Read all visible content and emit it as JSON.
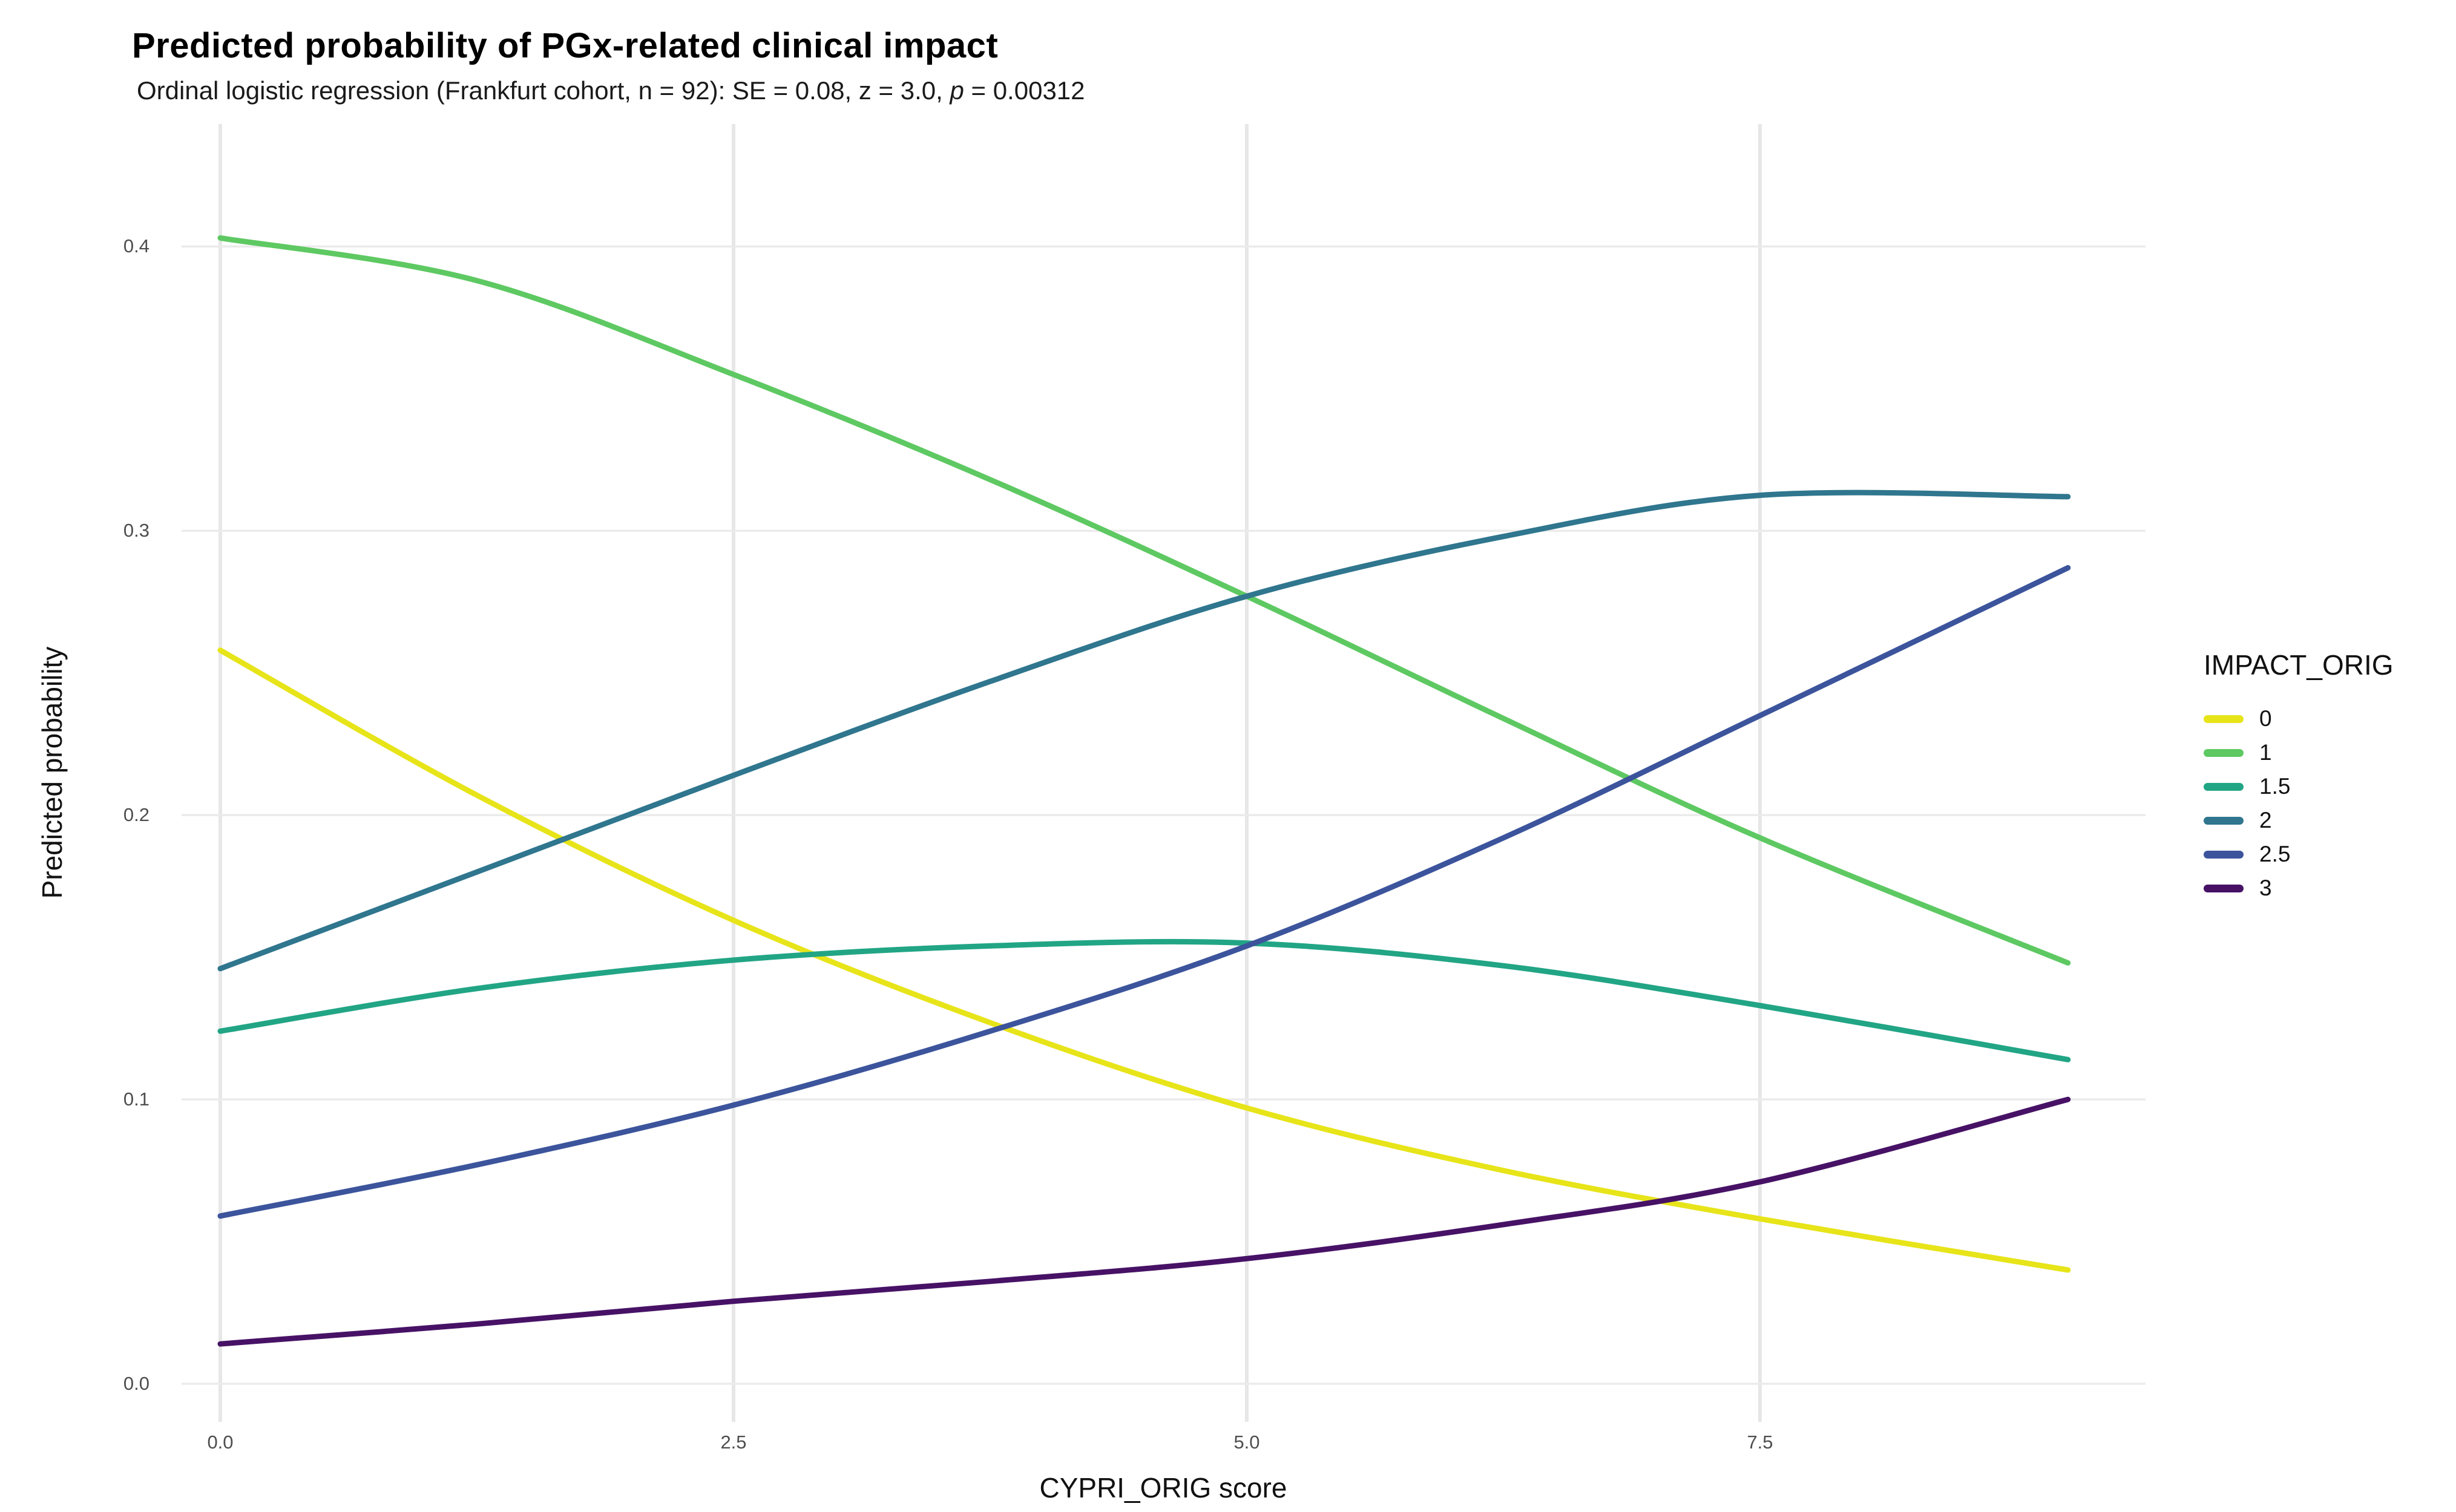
{
  "header": {
    "title": "Predicted probability of PGx-related clinical impact",
    "subtitle_prefix": "Ordinal logistic regression (Frankfurt cohort, n = 92): SE = 0.08, z = 3.0, ",
    "subtitle_italic": "p",
    "subtitle_suffix": " = 0.00312"
  },
  "chart_data": {
    "type": "line",
    "title": "Predicted probability of PGx-related clinical impact",
    "subtitle": "Ordinal logistic regression (Frankfurt cohort, n = 92): SE = 0.08, z = 3.0, p = 0.00312",
    "xlabel": "CYPRI_ORIG score",
    "ylabel": "Predicted probability",
    "xlim": [
      0,
      9
    ],
    "ylim": [
      0,
      0.42
    ],
    "grid": true,
    "legend_position": "right",
    "legend_title": "IMPACT_ORIG",
    "x_ticks": [
      "0.0",
      "2.5",
      "5.0",
      "7.5"
    ],
    "x_tick_values": [
      0,
      2.5,
      5,
      7.5
    ],
    "y_ticks": [
      "0.0",
      "0.1",
      "0.2",
      "0.3",
      "0.4"
    ],
    "y_tick_values": [
      0,
      0.1,
      0.2,
      0.3,
      0.4
    ],
    "x": [
      0,
      1.25,
      2.5,
      3.75,
      5,
      6.25,
      7.5,
      9
    ],
    "series": [
      {
        "name": "0",
        "color": "#e7e419",
        "values": [
          0.258,
          0.207,
          0.163,
          0.127,
          0.097,
          0.075,
          0.058,
          0.04
        ]
      },
      {
        "name": "1",
        "color": "#5ec962",
        "values": [
          0.403,
          0.388,
          0.355,
          0.318,
          0.277,
          0.234,
          0.192,
          0.148
        ]
      },
      {
        "name": "1.5",
        "color": "#21a585",
        "values": [
          0.124,
          0.139,
          0.149,
          0.154,
          0.155,
          0.147,
          0.133,
          0.114
        ]
      },
      {
        "name": "2",
        "color": "#2f768e",
        "values": [
          0.146,
          0.18,
          0.214,
          0.247,
          0.277,
          0.298,
          0.3125,
          0.312
        ]
      },
      {
        "name": "2.5",
        "color": "#3c549c",
        "values": [
          0.059,
          0.077,
          0.098,
          0.124,
          0.154,
          0.192,
          0.235,
          0.287
        ]
      },
      {
        "name": "3",
        "color": "#471266",
        "values": [
          0.014,
          0.021,
          0.029,
          0.036,
          0.044,
          0.056,
          0.071,
          0.1
        ]
      }
    ],
    "grid_color_h": "#ebebeb",
    "grid_color_v": "#e7e7e7"
  }
}
